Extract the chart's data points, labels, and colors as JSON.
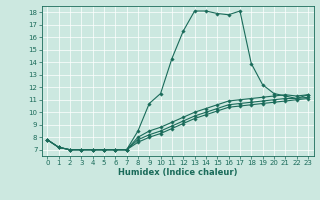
{
  "title": "",
  "xlabel": "Humidex (Indice chaleur)",
  "ylabel": "",
  "bg_color": "#cce8e0",
  "grid_color": "#ffffff",
  "line_color": "#1a6b5a",
  "xlim": [
    -0.5,
    23.5
  ],
  "ylim": [
    6.5,
    18.5
  ],
  "xticks": [
    0,
    1,
    2,
    3,
    4,
    5,
    6,
    7,
    8,
    9,
    10,
    11,
    12,
    13,
    14,
    15,
    16,
    17,
    18,
    19,
    20,
    21,
    22,
    23
  ],
  "yticks": [
    7,
    8,
    9,
    10,
    11,
    12,
    13,
    14,
    15,
    16,
    17,
    18
  ],
  "line1_x": [
    0,
    1,
    2,
    3,
    4,
    5,
    6,
    7,
    8,
    9,
    10,
    11,
    12,
    13,
    14,
    15,
    16,
    17,
    18,
    19,
    20,
    21,
    22,
    23
  ],
  "line1_y": [
    7.8,
    7.2,
    7.0,
    7.0,
    7.0,
    7.0,
    7.0,
    7.0,
    8.5,
    10.7,
    11.5,
    14.3,
    16.5,
    18.1,
    18.1,
    17.9,
    17.8,
    18.1,
    13.9,
    12.2,
    11.5,
    11.3,
    11.1,
    11.4
  ],
  "line2_x": [
    0,
    1,
    2,
    3,
    4,
    5,
    6,
    7,
    8,
    9,
    10,
    11,
    12,
    13,
    14,
    15,
    16,
    17,
    18,
    19,
    20,
    21,
    22,
    23
  ],
  "line2_y": [
    7.8,
    7.2,
    7.0,
    7.0,
    7.0,
    7.0,
    7.0,
    7.0,
    8.0,
    8.5,
    8.8,
    9.2,
    9.6,
    10.0,
    10.3,
    10.6,
    10.9,
    11.0,
    11.1,
    11.2,
    11.3,
    11.4,
    11.3,
    11.4
  ],
  "line3_x": [
    0,
    1,
    2,
    3,
    4,
    5,
    6,
    7,
    8,
    9,
    10,
    11,
    12,
    13,
    14,
    15,
    16,
    17,
    18,
    19,
    20,
    21,
    22,
    23
  ],
  "line3_y": [
    7.8,
    7.2,
    7.0,
    7.0,
    7.0,
    7.0,
    7.0,
    7.0,
    7.8,
    8.2,
    8.5,
    8.9,
    9.3,
    9.7,
    10.0,
    10.3,
    10.6,
    10.7,
    10.8,
    10.9,
    11.0,
    11.1,
    11.1,
    11.2
  ],
  "line4_x": [
    0,
    1,
    2,
    3,
    4,
    5,
    6,
    7,
    8,
    9,
    10,
    11,
    12,
    13,
    14,
    15,
    16,
    17,
    18,
    19,
    20,
    21,
    22,
    23
  ],
  "line4_y": [
    7.8,
    7.2,
    7.0,
    7.0,
    7.0,
    7.0,
    7.0,
    7.0,
    7.6,
    8.0,
    8.3,
    8.7,
    9.1,
    9.5,
    9.8,
    10.1,
    10.4,
    10.5,
    10.6,
    10.7,
    10.8,
    10.9,
    11.0,
    11.1
  ],
  "tick_fontsize": 5.0,
  "xlabel_fontsize": 6.0,
  "marker_size": 1.8,
  "line_width": 0.8
}
